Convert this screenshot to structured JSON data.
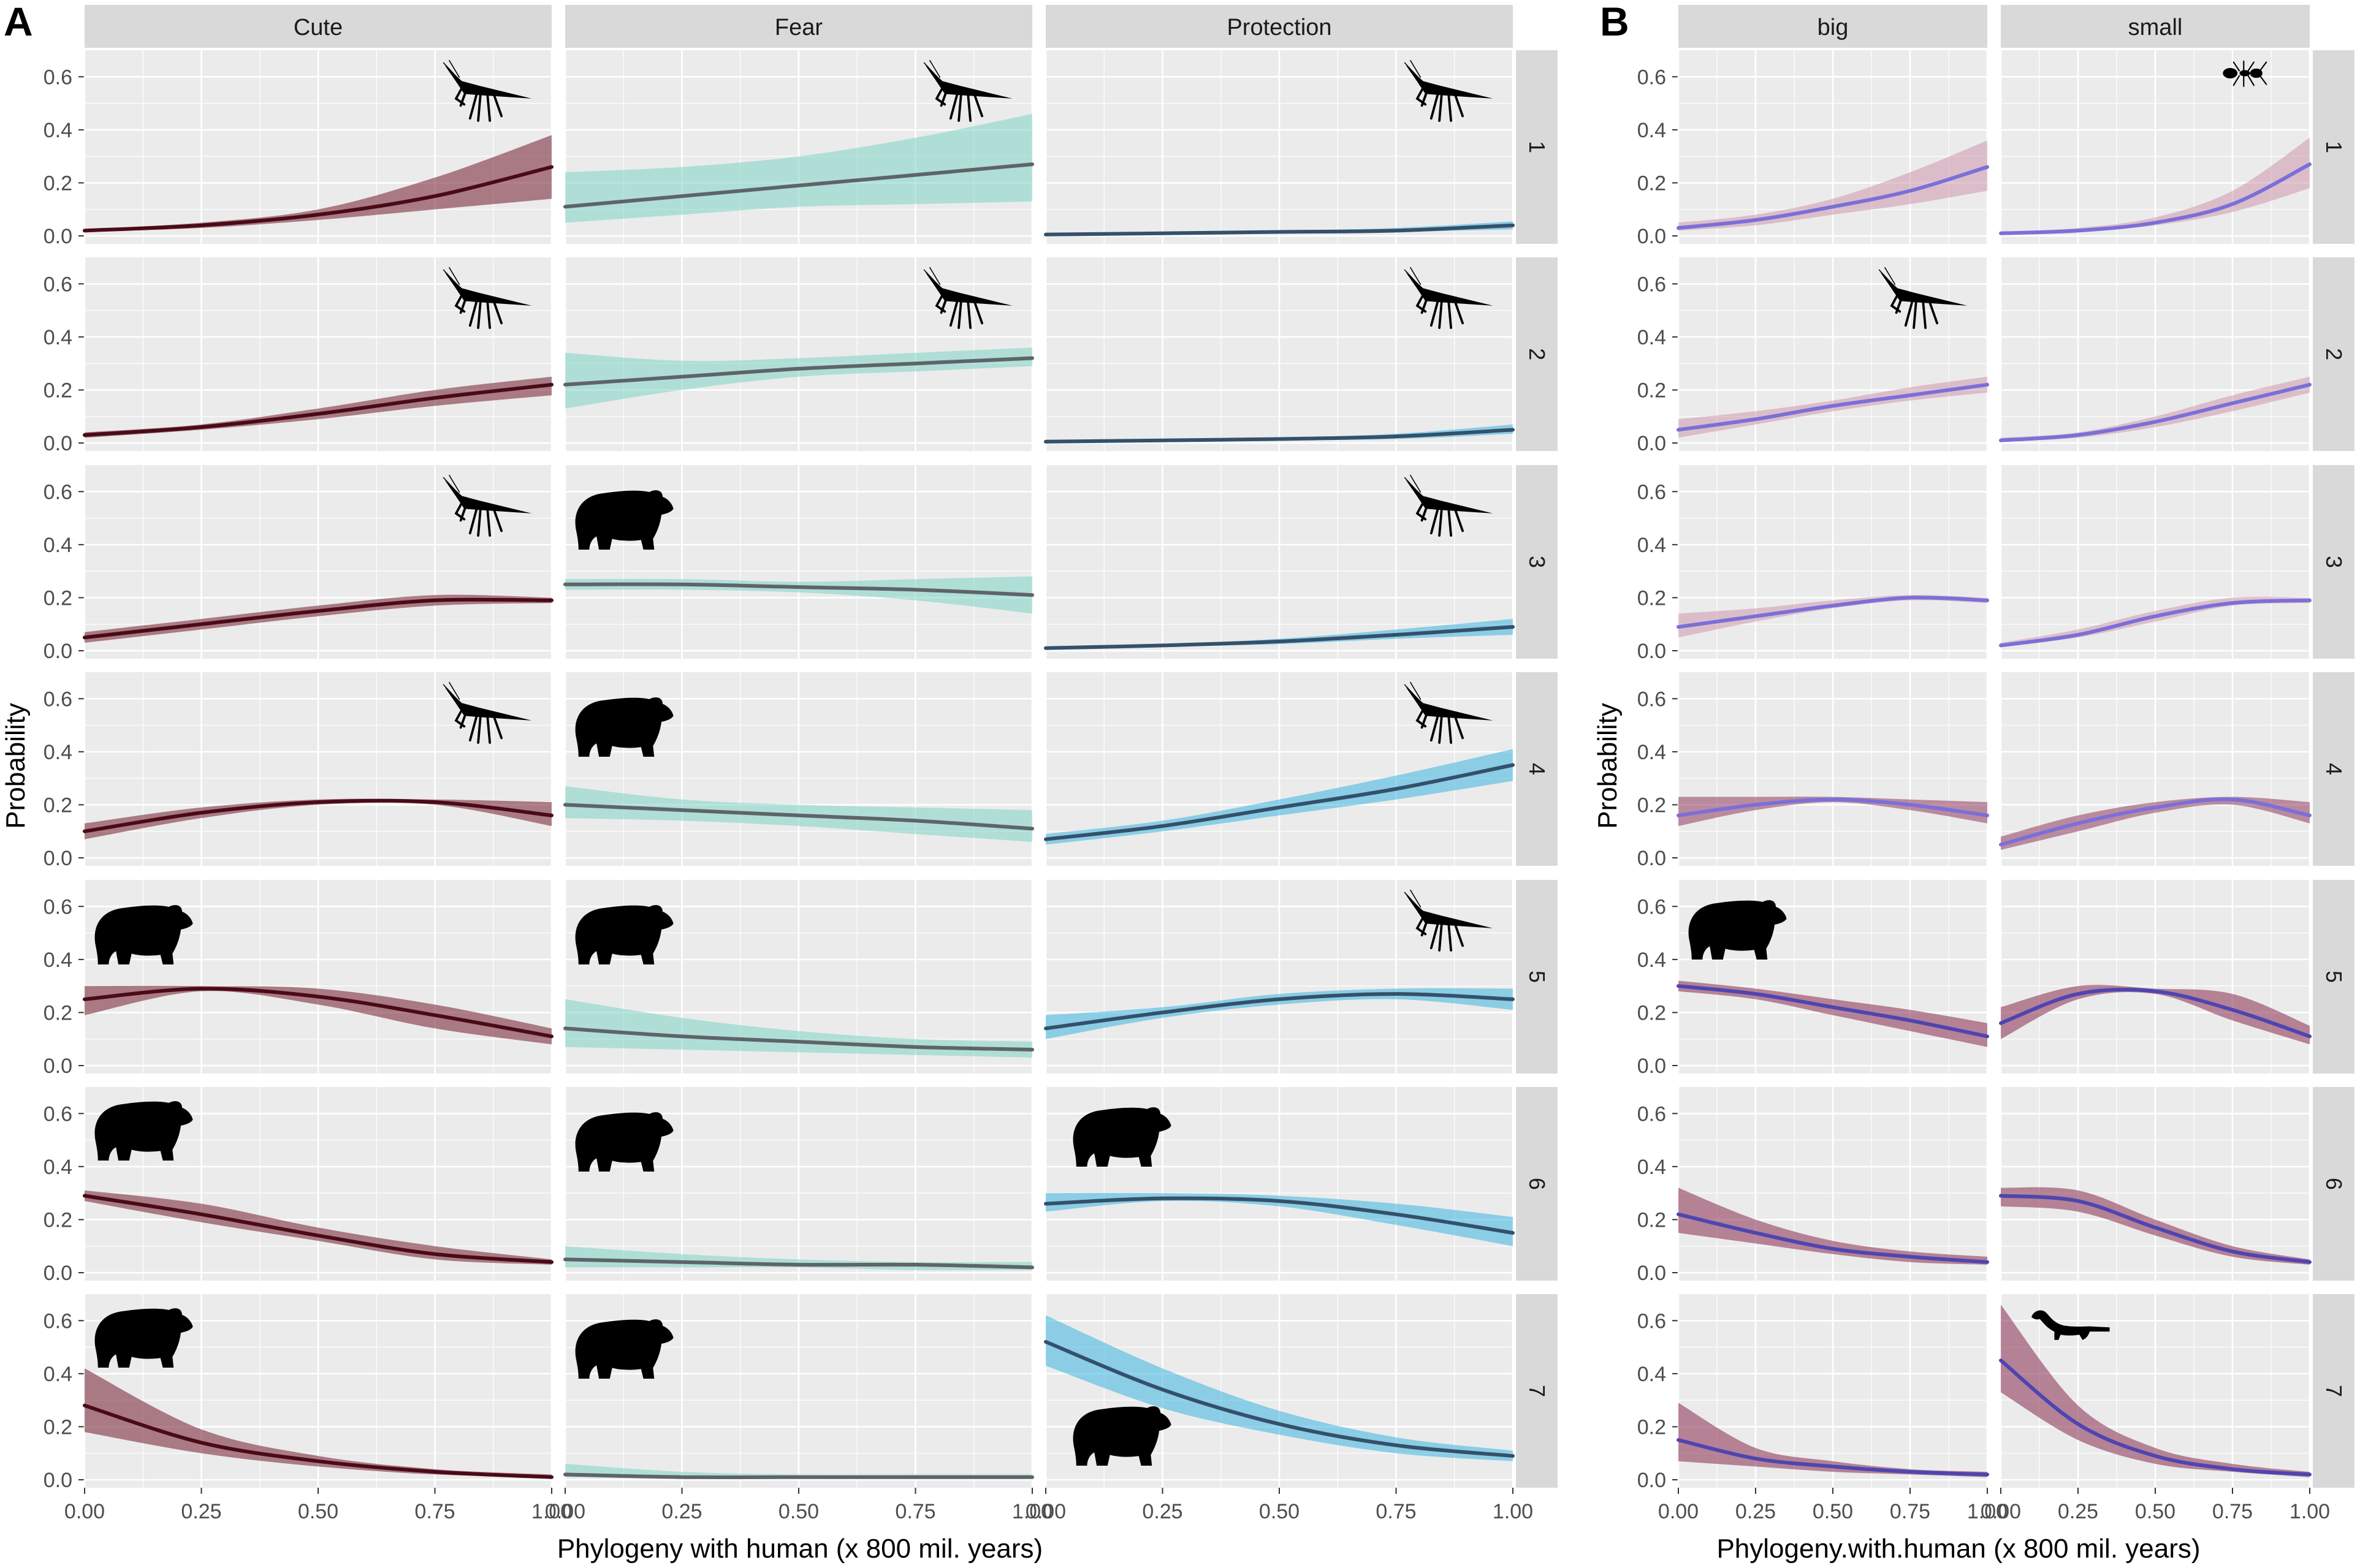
{
  "colors": {
    "panel_bg": "#ebebeb",
    "grid": "#ffffff",
    "strip_bg": "#d9d9d9",
    "strip_text": "#1a1a1a",
    "axis_text": "#4d4d4d",
    "title_text": "#000000",
    "cute_line": "#4a0a17",
    "cute_band": "#7d2f3e",
    "fear_line": "#5e6468",
    "fear_band": "#7ed3c4",
    "prot_line": "#34506b",
    "prot_band": "#3ab4e0",
    "b_line": "#7b6fd8",
    "b_band_light": "#cc8fa8",
    "b_band_dark": "#8f3a5c",
    "b_line_dark": "#4e45b0",
    "silhouette": "#000000"
  },
  "labels": {
    "panel_a": "A",
    "panel_b": "B",
    "y_title_a": "Probability",
    "y_title_b": "Probability",
    "x_title_a": "Phylogeny with human (x 800 mil. years)",
    "x_title_b": "Phylogeny.with.human (x 800 mil. years)"
  },
  "chart_data": [
    {
      "id": "A",
      "type": "line",
      "title": "",
      "xlabel": "Phylogeny with human (x 800 mil. years)",
      "ylabel": "Probability",
      "xlim": [
        0,
        1
      ],
      "ylim": [
        -0.03,
        0.7
      ],
      "x_ticks": [
        0,
        0.25,
        0.5,
        0.75,
        1
      ],
      "x_tick_labels": [
        "0.00",
        "0.25",
        "0.50",
        "0.75",
        "1.00"
      ],
      "y_ticks": [
        0,
        0.2,
        0.4,
        0.6
      ],
      "y_tick_labels": [
        "0.0",
        "0.2",
        "0.4",
        "0.6"
      ],
      "columns": [
        "Cute",
        "Fear",
        "Protection"
      ],
      "rows": [
        "1",
        "2",
        "3",
        "4",
        "5",
        "6",
        "7"
      ],
      "x": [
        0,
        0.25,
        0.5,
        0.75,
        1
      ],
      "series": {
        "Cute": [
          {
            "row": "1",
            "icon": "mantis-icon",
            "values": [
              0.02,
              0.04,
              0.08,
              0.15,
              0.26
            ],
            "lower": [
              0.015,
              0.03,
              0.06,
              0.1,
              0.14
            ],
            "upper": [
              0.025,
              0.05,
              0.1,
              0.22,
              0.38
            ]
          },
          {
            "row": "2",
            "icon": "mantis-icon",
            "values": [
              0.03,
              0.06,
              0.11,
              0.17,
              0.22
            ],
            "lower": [
              0.02,
              0.05,
              0.09,
              0.14,
              0.18
            ],
            "upper": [
              0.04,
              0.07,
              0.13,
              0.2,
              0.25
            ]
          },
          {
            "row": "3",
            "icon": "mantis-icon",
            "values": [
              0.05,
              0.1,
              0.15,
              0.19,
              0.19
            ],
            "lower": [
              0.03,
              0.08,
              0.13,
              0.17,
              0.18
            ],
            "upper": [
              0.07,
              0.12,
              0.17,
              0.21,
              0.2
            ]
          },
          {
            "row": "4",
            "icon": "mantis-icon",
            "values": [
              0.1,
              0.17,
              0.21,
              0.21,
              0.16
            ],
            "lower": [
              0.07,
              0.15,
              0.2,
              0.2,
              0.12
            ],
            "upper": [
              0.13,
              0.19,
              0.22,
              0.22,
              0.21
            ]
          },
          {
            "row": "5",
            "icon": "bear-icon",
            "values": [
              0.25,
              0.29,
              0.26,
              0.19,
              0.11
            ],
            "lower": [
              0.19,
              0.28,
              0.23,
              0.14,
              0.08
            ],
            "upper": [
              0.3,
              0.3,
              0.29,
              0.23,
              0.14
            ]
          },
          {
            "row": "6",
            "icon": "bear-icon",
            "values": [
              0.29,
              0.22,
              0.14,
              0.07,
              0.04
            ],
            "lower": [
              0.27,
              0.19,
              0.12,
              0.05,
              0.03
            ],
            "upper": [
              0.31,
              0.26,
              0.17,
              0.1,
              0.05
            ]
          },
          {
            "row": "7",
            "icon": "bear-icon",
            "values": [
              0.28,
              0.14,
              0.07,
              0.03,
              0.01
            ],
            "lower": [
              0.18,
              0.1,
              0.05,
              0.02,
              0.01
            ],
            "upper": [
              0.42,
              0.19,
              0.09,
              0.04,
              0.02
            ]
          }
        ],
        "Fear": [
          {
            "row": "1",
            "icon": "mantis-icon",
            "values": [
              0.11,
              0.15,
              0.19,
              0.23,
              0.27
            ],
            "lower": [
              0.05,
              0.08,
              0.11,
              0.12,
              0.13
            ],
            "upper": [
              0.24,
              0.26,
              0.3,
              0.37,
              0.46
            ]
          },
          {
            "row": "2",
            "icon": "mantis-icon",
            "values": [
              0.22,
              0.25,
              0.28,
              0.3,
              0.32
            ],
            "lower": [
              0.13,
              0.2,
              0.25,
              0.27,
              0.29
            ],
            "upper": [
              0.34,
              0.31,
              0.32,
              0.34,
              0.36
            ]
          },
          {
            "row": "3",
            "icon": "bear-icon",
            "values": [
              0.25,
              0.25,
              0.24,
              0.23,
              0.21
            ],
            "lower": [
              0.23,
              0.23,
              0.22,
              0.19,
              0.14
            ],
            "upper": [
              0.27,
              0.27,
              0.26,
              0.27,
              0.28
            ]
          },
          {
            "row": "4",
            "icon": "bear-icon",
            "values": [
              0.2,
              0.18,
              0.16,
              0.14,
              0.11
            ],
            "lower": [
              0.15,
              0.14,
              0.12,
              0.09,
              0.06
            ],
            "upper": [
              0.27,
              0.22,
              0.2,
              0.19,
              0.18
            ]
          },
          {
            "row": "5",
            "icon": "bear-icon",
            "values": [
              0.14,
              0.11,
              0.09,
              0.07,
              0.06
            ],
            "lower": [
              0.07,
              0.06,
              0.05,
              0.04,
              0.03
            ],
            "upper": [
              0.25,
              0.18,
              0.13,
              0.1,
              0.09
            ]
          },
          {
            "row": "6",
            "icon": "bear-icon",
            "values": [
              0.05,
              0.04,
              0.03,
              0.03,
              0.02
            ],
            "lower": [
              0.02,
              0.02,
              0.02,
              0.01,
              0.01
            ],
            "upper": [
              0.1,
              0.07,
              0.05,
              0.04,
              0.04
            ]
          },
          {
            "row": "7",
            "icon": "bear-icon",
            "values": [
              0.02,
              0.01,
              0.01,
              0.01,
              0.01
            ],
            "lower": [
              0.01,
              0.005,
              0.005,
              0.005,
              0.005
            ],
            "upper": [
              0.06,
              0.03,
              0.02,
              0.02,
              0.02
            ]
          }
        ],
        "Protection": [
          {
            "row": "1",
            "icon": "mantis-icon",
            "values": [
              0.005,
              0.01,
              0.015,
              0.02,
              0.04
            ],
            "lower": [
              0.003,
              0.005,
              0.01,
              0.015,
              0.025
            ],
            "upper": [
              0.008,
              0.012,
              0.02,
              0.03,
              0.055
            ]
          },
          {
            "row": "2",
            "icon": "mantis-icon",
            "values": [
              0.005,
              0.01,
              0.015,
              0.025,
              0.05
            ],
            "lower": [
              0.003,
              0.005,
              0.01,
              0.015,
              0.035
            ],
            "upper": [
              0.008,
              0.012,
              0.02,
              0.035,
              0.07
            ]
          },
          {
            "row": "3",
            "icon": "mantis-icon",
            "values": [
              0.01,
              0.02,
              0.035,
              0.06,
              0.09
            ],
            "lower": [
              0.005,
              0.015,
              0.025,
              0.045,
              0.06
            ],
            "upper": [
              0.015,
              0.025,
              0.045,
              0.08,
              0.12
            ]
          },
          {
            "row": "4",
            "icon": "mantis-icon",
            "values": [
              0.07,
              0.12,
              0.19,
              0.26,
              0.35
            ],
            "lower": [
              0.05,
              0.1,
              0.16,
              0.22,
              0.29
            ],
            "upper": [
              0.09,
              0.14,
              0.22,
              0.31,
              0.41
            ]
          },
          {
            "row": "5",
            "icon": "mantis-icon",
            "values": [
              0.14,
              0.2,
              0.25,
              0.27,
              0.25
            ],
            "lower": [
              0.1,
              0.18,
              0.23,
              0.25,
              0.21
            ],
            "upper": [
              0.19,
              0.22,
              0.27,
              0.29,
              0.29
            ]
          },
          {
            "row": "6",
            "icon": "bear-icon",
            "values": [
              0.26,
              0.28,
              0.27,
              0.22,
              0.15
            ],
            "lower": [
              0.23,
              0.27,
              0.25,
              0.18,
              0.1
            ],
            "upper": [
              0.3,
              0.3,
              0.29,
              0.26,
              0.21
            ]
          },
          {
            "row": "7",
            "icon": "bear-icon",
            "values": [
              0.52,
              0.34,
              0.21,
              0.13,
              0.09
            ],
            "lower": [
              0.43,
              0.27,
              0.17,
              0.1,
              0.07
            ],
            "upper": [
              0.62,
              0.42,
              0.26,
              0.16,
              0.11
            ]
          }
        ]
      }
    },
    {
      "id": "B",
      "type": "line",
      "title": "",
      "xlabel": "Phylogeny.with.human (x 800 mil. years)",
      "ylabel": "Probability",
      "xlim": [
        0,
        1
      ],
      "ylim": [
        -0.03,
        0.7
      ],
      "x_ticks": [
        0,
        0.25,
        0.5,
        0.75,
        1
      ],
      "x_tick_labels": [
        "0.00",
        "0.25",
        "0.50",
        "0.75",
        "1.00"
      ],
      "y_ticks": [
        0,
        0.2,
        0.4,
        0.6
      ],
      "y_tick_labels": [
        "0.0",
        "0.2",
        "0.4",
        "0.6"
      ],
      "columns": [
        "big",
        "small"
      ],
      "rows": [
        "1",
        "2",
        "3",
        "4",
        "5",
        "6",
        "7"
      ],
      "x": [
        0,
        0.25,
        0.5,
        0.75,
        1
      ],
      "series": {
        "big": [
          {
            "row": "1",
            "icon": "",
            "values": [
              0.03,
              0.06,
              0.11,
              0.17,
              0.26
            ],
            "lower": [
              0.02,
              0.04,
              0.08,
              0.12,
              0.17
            ],
            "upper": [
              0.05,
              0.08,
              0.14,
              0.24,
              0.36
            ]
          },
          {
            "row": "2",
            "icon": "mantis-icon",
            "values": [
              0.05,
              0.09,
              0.14,
              0.18,
              0.22
            ],
            "lower": [
              0.02,
              0.07,
              0.12,
              0.16,
              0.19
            ],
            "upper": [
              0.09,
              0.12,
              0.16,
              0.21,
              0.25
            ]
          },
          {
            "row": "3",
            "icon": "",
            "values": [
              0.09,
              0.13,
              0.17,
              0.2,
              0.19
            ],
            "lower": [
              0.05,
              0.11,
              0.16,
              0.19,
              0.18
            ],
            "upper": [
              0.14,
              0.16,
              0.19,
              0.21,
              0.2
            ]
          },
          {
            "row": "4",
            "icon": "",
            "values": [
              0.16,
              0.2,
              0.22,
              0.2,
              0.16
            ],
            "lower": [
              0.12,
              0.18,
              0.21,
              0.18,
              0.13
            ],
            "upper": [
              0.23,
              0.23,
              0.23,
              0.22,
              0.21
            ]
          },
          {
            "row": "5",
            "icon": "bear-icon",
            "values": [
              0.3,
              0.27,
              0.22,
              0.17,
              0.11
            ],
            "lower": [
              0.28,
              0.25,
              0.19,
              0.13,
              0.07
            ],
            "upper": [
              0.32,
              0.29,
              0.25,
              0.21,
              0.16
            ]
          },
          {
            "row": "6",
            "icon": "",
            "values": [
              0.22,
              0.15,
              0.09,
              0.06,
              0.04
            ],
            "lower": [
              0.15,
              0.11,
              0.07,
              0.04,
              0.03
            ],
            "upper": [
              0.32,
              0.2,
              0.12,
              0.08,
              0.06
            ]
          },
          {
            "row": "7",
            "icon": "",
            "values": [
              0.15,
              0.08,
              0.05,
              0.03,
              0.02
            ],
            "lower": [
              0.07,
              0.05,
              0.03,
              0.02,
              0.01
            ],
            "upper": [
              0.29,
              0.12,
              0.07,
              0.04,
              0.03
            ]
          }
        ],
        "small": [
          {
            "row": "1",
            "icon": "ant-icon",
            "values": [
              0.01,
              0.02,
              0.05,
              0.12,
              0.27
            ],
            "lower": [
              0.005,
              0.015,
              0.04,
              0.09,
              0.18
            ],
            "upper": [
              0.015,
              0.03,
              0.07,
              0.17,
              0.37
            ]
          },
          {
            "row": "2",
            "icon": "",
            "values": [
              0.01,
              0.03,
              0.08,
              0.15,
              0.22
            ],
            "lower": [
              0.005,
              0.02,
              0.06,
              0.12,
              0.19
            ],
            "upper": [
              0.02,
              0.04,
              0.1,
              0.18,
              0.25
            ]
          },
          {
            "row": "3",
            "icon": "",
            "values": [
              0.02,
              0.06,
              0.13,
              0.18,
              0.19
            ],
            "lower": [
              0.015,
              0.05,
              0.11,
              0.17,
              0.18
            ],
            "upper": [
              0.03,
              0.08,
              0.15,
              0.2,
              0.2
            ]
          },
          {
            "row": "4",
            "icon": "",
            "values": [
              0.05,
              0.13,
              0.19,
              0.22,
              0.16
            ],
            "lower": [
              0.03,
              0.1,
              0.17,
              0.2,
              0.13
            ],
            "upper": [
              0.08,
              0.16,
              0.21,
              0.23,
              0.21
            ]
          },
          {
            "row": "5",
            "icon": "",
            "values": [
              0.16,
              0.27,
              0.28,
              0.21,
              0.11
            ],
            "lower": [
              0.1,
              0.25,
              0.27,
              0.17,
              0.08
            ],
            "upper": [
              0.22,
              0.3,
              0.29,
              0.27,
              0.15
            ]
          },
          {
            "row": "6",
            "icon": "",
            "values": [
              0.29,
              0.27,
              0.17,
              0.08,
              0.04
            ],
            "lower": [
              0.25,
              0.23,
              0.14,
              0.06,
              0.03
            ],
            "upper": [
              0.32,
              0.31,
              0.2,
              0.1,
              0.05
            ]
          },
          {
            "row": "7",
            "icon": "weasel-icon",
            "values": [
              0.45,
              0.21,
              0.09,
              0.04,
              0.02
            ],
            "lower": [
              0.33,
              0.15,
              0.06,
              0.03,
              0.01
            ],
            "upper": [
              0.66,
              0.28,
              0.12,
              0.06,
              0.03
            ]
          }
        ]
      }
    }
  ]
}
